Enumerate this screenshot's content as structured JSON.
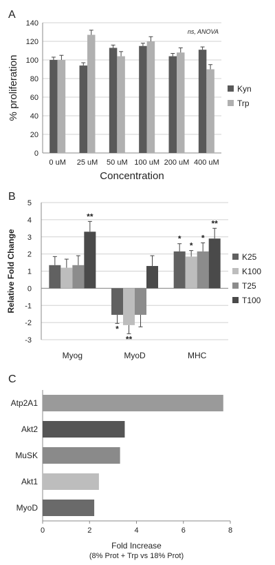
{
  "chart_data": [
    {
      "panel": "A",
      "type": "bar",
      "categories": [
        "0 uM",
        "25 uM",
        "50 uM",
        "100 uM",
        "200 uM",
        "400 uM"
      ],
      "series": [
        {
          "name": "Kyn",
          "values": [
            100,
            94,
            113,
            115,
            104,
            111
          ],
          "errors": [
            3,
            3,
            3,
            3,
            3,
            3
          ],
          "color": "#595959"
        },
        {
          "name": "Trp",
          "values": [
            100,
            127,
            104,
            120,
            108,
            90
          ],
          "errors": [
            5,
            5,
            5,
            5,
            5,
            5
          ],
          "color": "#b0b0b0"
        }
      ],
      "xlabel": "Concentration",
      "ylabel": "% proliferation",
      "ylim": [
        0,
        140
      ],
      "yticks": [
        0,
        20,
        40,
        60,
        80,
        100,
        120,
        140
      ],
      "annotation": "ns, ANOVA",
      "grid": true,
      "legend": "right"
    },
    {
      "panel": "B",
      "type": "bar",
      "categories": [
        "Myog",
        "MyoD",
        "MHC"
      ],
      "series": [
        {
          "name": "K25",
          "values": [
            1.35,
            -1.55,
            2.15
          ],
          "errors": [
            0.5,
            0.5,
            0.45
          ],
          "sig": [
            "",
            "*",
            "*"
          ],
          "color": "#616161"
        },
        {
          "name": "K100",
          "values": [
            1.2,
            -2.15,
            1.85
          ],
          "errors": [
            0.5,
            0.5,
            0.35
          ],
          "sig": [
            "",
            "**",
            "*"
          ],
          "color": "#bdbdbd"
        },
        {
          "name": "T25",
          "values": [
            1.35,
            -1.55,
            2.15
          ],
          "errors": [
            0.55,
            0.7,
            0.5
          ],
          "sig": [
            "",
            "",
            "*"
          ],
          "color": "#8c8c8c"
        },
        {
          "name": "T100",
          "values": [
            3.3,
            1.3,
            2.9
          ],
          "errors": [
            0.6,
            0.6,
            0.6
          ],
          "sig": [
            "**",
            "",
            "**"
          ],
          "color": "#4a4a4a"
        }
      ],
      "ylabel": "Relative Fold Change",
      "ylim": [
        -3,
        5
      ],
      "yticks": [
        -3,
        -2,
        -1,
        0,
        1,
        2,
        3,
        4,
        5
      ],
      "grid": true,
      "legend": "right"
    },
    {
      "panel": "C",
      "type": "bar",
      "orientation": "horizontal",
      "categories": [
        "Atp2A1",
        "Akt2",
        "MuSK",
        "Akt1",
        "MyoD"
      ],
      "values": [
        7.7,
        3.5,
        3.3,
        2.4,
        2.2
      ],
      "colors": [
        "#9a9a9a",
        "#555555",
        "#8a8a8a",
        "#bdbdbd",
        "#6a6a6a"
      ],
      "xlabel": "Fold Increase",
      "xlabel2": "(8% Prot + Trp vs 18% Prot)",
      "xlim": [
        0,
        8
      ],
      "xticks": [
        0,
        2,
        4,
        6,
        8
      ],
      "grid": false
    }
  ]
}
